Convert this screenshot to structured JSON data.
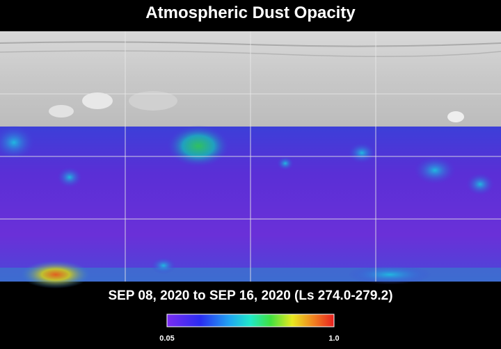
{
  "title": "Atmospheric Dust Opacity",
  "subtitle": "SEP 08, 2020 to SEP 16, 2020 (Ls 274.0-279.2)",
  "colorbar": {
    "labels": [
      "0.05",
      "1.0"
    ]
  }
}
